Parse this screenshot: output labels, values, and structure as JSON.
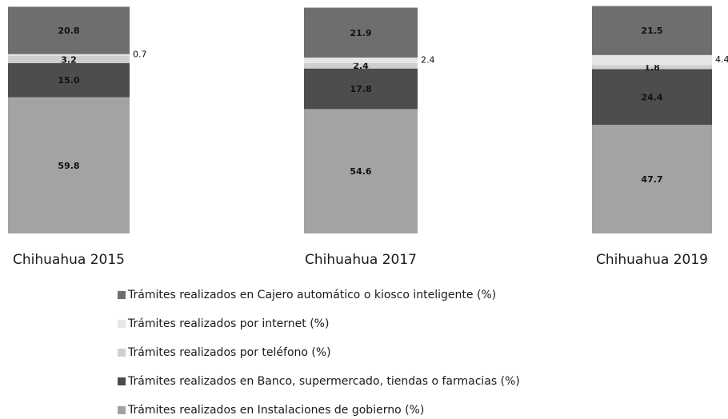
{
  "chart_data": {
    "type": "stacked_bar",
    "categories": [
      "Chihuahua 2015",
      "Chihuahua 2017",
      "Chihuahua 2019"
    ],
    "ylim": [
      0,
      100
    ],
    "series": [
      {
        "name": "Trámites realizados en Instalaciones de gobierno (%)",
        "color": "#a3a3a3",
        "values": [
          59.8,
          54.6,
          47.7
        ],
        "value_labels": [
          "59.8",
          "54.6",
          "47.7"
        ]
      },
      {
        "name": "Trámites realizados en Banco, supermercado, tiendas o farmacias (%)",
        "color": "#4d4d4d",
        "values": [
          15.0,
          17.8,
          24.4
        ],
        "value_labels": [
          "15.0",
          "17.8",
          "24.4"
        ]
      },
      {
        "name": "Trámites realizados por teléfono (%)",
        "color": "#cfcfcf",
        "values": [
          3.2,
          2.4,
          1.8
        ],
        "value_labels": [
          "3.2",
          "2.4",
          "1.8"
        ]
      },
      {
        "name": "Trámites realizados por internet (%)",
        "color": "#e6e6e6",
        "values": [
          0.7,
          2.4,
          4.4
        ],
        "value_labels": [
          "0.7",
          "2.4",
          "4.4"
        ]
      },
      {
        "name": "Trámites realizados en Cajero automático o kiosco inteligente (%)",
        "color": "#6e6e6e",
        "values": [
          20.8,
          21.9,
          21.5
        ],
        "value_labels": [
          "20.8",
          "21.9",
          "21.5"
        ]
      }
    ]
  }
}
